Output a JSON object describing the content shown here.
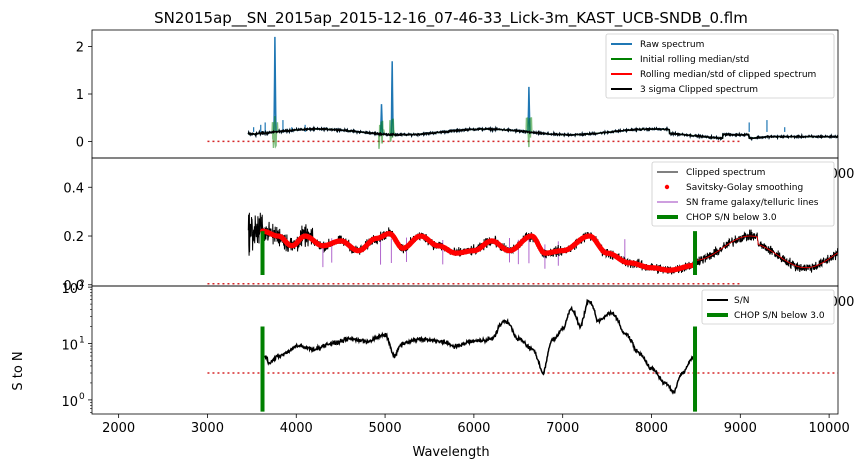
{
  "title": "SN2015ap__SN_2015ap_2015-12-16_07-46-33_Lick-3m_KAST_UCB-SNDB_0.flm",
  "xlabel": "Wavelength",
  "colors": {
    "raw": "#1f77b4",
    "initial": "#008000",
    "clipped_red": "#ff0000",
    "black": "#000000",
    "lines": "#9c3fbf",
    "chop": "#008000",
    "dotted": "#d62728"
  },
  "chart_data": [
    {
      "type": "line",
      "panel": "top",
      "xlim": [
        1700,
        10100
      ],
      "ylim": [
        -0.35,
        2.35
      ],
      "yticks": [
        0,
        1,
        2
      ],
      "ytick_labels": [
        "0",
        "1",
        "2"
      ],
      "series": [
        {
          "name": "Raw spectrum",
          "color": "#1f77b4",
          "peaks": [
            [
              3760,
              2.2
            ],
            [
              4960,
              0.8
            ],
            [
              5080,
              1.7
            ],
            [
              6620,
              1.15
            ]
          ]
        },
        {
          "name": "Initial rolling median/std",
          "color": "#008000"
        },
        {
          "name": "Rolling median/std of clipped spectrum",
          "color": "#ff0000"
        },
        {
          "name": "3 sigma Clipped spectrum",
          "color": "#000000"
        }
      ],
      "threshold": {
        "y": 0.0,
        "x": [
          3000,
          9000
        ]
      }
    },
    {
      "type": "line",
      "panel": "middle",
      "xlim": [
        1700,
        10100
      ],
      "ylim": [
        -0.005,
        0.52
      ],
      "yticks": [
        0.0,
        0.2,
        0.4
      ],
      "ytick_labels": [
        "0.0",
        "0.2",
        "0.4"
      ],
      "series": [
        {
          "name": "Clipped spectrum",
          "color": "#000000"
        },
        {
          "name": "Savitsky-Golay smoothing",
          "color": "#ff0000"
        },
        {
          "name": "SN frame galaxy/telluric lines",
          "color": "#9c3fbf",
          "lines": [
            4300,
            4400,
            4950,
            5070,
            5240,
            5650,
            6400,
            6500,
            6620,
            6800,
            6950,
            7700
          ]
        },
        {
          "name": "CHOP S/N below 3.0",
          "color": "#008000",
          "x": [
            3620,
            8490
          ]
        }
      ],
      "smooth_anchor": [
        [
          3620,
          0.22
        ],
        [
          3800,
          0.2
        ],
        [
          3950,
          0.16
        ],
        [
          4100,
          0.2
        ],
        [
          4300,
          0.16
        ],
        [
          4500,
          0.18
        ],
        [
          4700,
          0.14
        ],
        [
          4900,
          0.19
        ],
        [
          5050,
          0.21
        ],
        [
          5200,
          0.15
        ],
        [
          5400,
          0.2
        ],
        [
          5600,
          0.16
        ],
        [
          5800,
          0.13
        ],
        [
          6000,
          0.14
        ],
        [
          6200,
          0.18
        ],
        [
          6400,
          0.14
        ],
        [
          6650,
          0.2
        ],
        [
          6800,
          0.13
        ],
        [
          7000,
          0.14
        ],
        [
          7300,
          0.2
        ],
        [
          7500,
          0.13
        ],
        [
          7750,
          0.09
        ],
        [
          8000,
          0.07
        ],
        [
          8200,
          0.06
        ],
        [
          8490,
          0.08
        ]
      ],
      "threshold": {
        "y": 0.0,
        "x": [
          3000,
          9000
        ]
      }
    },
    {
      "type": "line",
      "panel": "bottom",
      "xlim": [
        1700,
        10100
      ],
      "ylim_log10": [
        -0.25,
        2.02
      ],
      "yscale": "log",
      "ylabel": "S to N",
      "yticks": [
        1,
        10,
        100
      ],
      "ytick_labels": [
        "10",
        "10",
        "10"
      ],
      "ytick_exponents": [
        "0",
        "1",
        "2"
      ],
      "xticks": [
        2000,
        3000,
        4000,
        5000,
        6000,
        7000,
        8000,
        9000,
        10000
      ],
      "xtick_labels": [
        "2000",
        "3000",
        "4000",
        "5000",
        "6000",
        "7000",
        "8000",
        "9000",
        "10000"
      ],
      "series": [
        {
          "name": "S/N",
          "color": "#000000"
        },
        {
          "name": "CHOP S/N below 3.0",
          "color": "#008000",
          "x": [
            3620,
            8490
          ]
        }
      ],
      "sn_anchor": [
        [
          3640,
          6
        ],
        [
          3700,
          4.5
        ],
        [
          3800,
          6
        ],
        [
          3900,
          7
        ],
        [
          4000,
          9
        ],
        [
          4200,
          8
        ],
        [
          4400,
          10
        ],
        [
          4600,
          12
        ],
        [
          4800,
          11
        ],
        [
          5000,
          14
        ],
        [
          5100,
          6
        ],
        [
          5200,
          10
        ],
        [
          5400,
          12
        ],
        [
          5600,
          11
        ],
        [
          5800,
          9
        ],
        [
          6000,
          11
        ],
        [
          6200,
          12
        ],
        [
          6350,
          25
        ],
        [
          6500,
          12
        ],
        [
          6650,
          8
        ],
        [
          6780,
          3
        ],
        [
          6900,
          12
        ],
        [
          7000,
          18
        ],
        [
          7100,
          40
        ],
        [
          7200,
          20
        ],
        [
          7300,
          55
        ],
        [
          7400,
          25
        ],
        [
          7550,
          35
        ],
        [
          7700,
          15
        ],
        [
          7850,
          7
        ],
        [
          8000,
          3.5
        ],
        [
          8150,
          2
        ],
        [
          8250,
          1.4
        ],
        [
          8350,
          3
        ],
        [
          8490,
          6
        ]
      ],
      "threshold": {
        "y": 3.0,
        "x": [
          3000,
          10100
        ]
      }
    }
  ],
  "legends": {
    "top": [
      "Raw spectrum",
      "Initial rolling median/std",
      "Rolling median/std of clipped spectrum",
      "3 sigma Clipped spectrum"
    ],
    "middle": [
      "Clipped spectrum",
      "Savitsky-Golay smoothing",
      "SN frame galaxy/telluric lines",
      "CHOP S/N below 3.0"
    ],
    "bottom": [
      "S/N",
      "CHOP S/N below 3.0"
    ]
  },
  "overlap_tick_labels": {
    "top": "000",
    "middle": "000"
  }
}
